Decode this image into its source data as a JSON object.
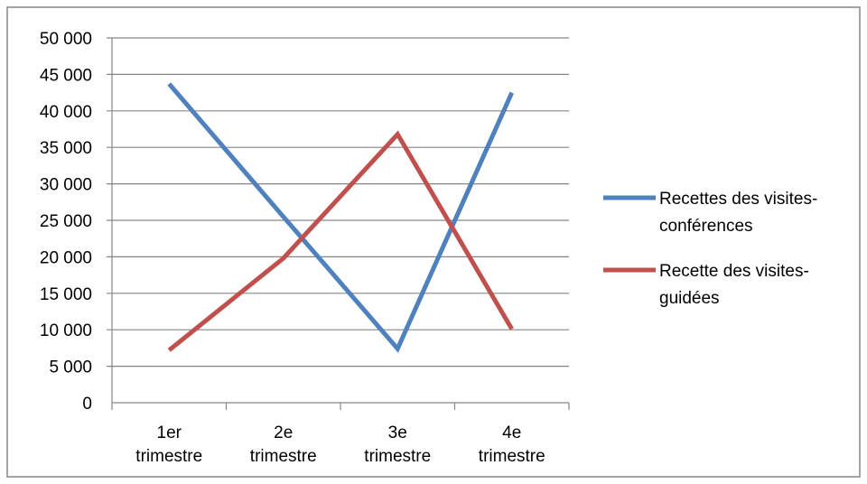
{
  "chart_data": {
    "type": "line",
    "categories": [
      [
        "1er",
        "trimestre"
      ],
      [
        "2e",
        "trimestre"
      ],
      [
        "3e",
        "trimestre"
      ],
      [
        "4e",
        "trimestre"
      ]
    ],
    "ylim": [
      0,
      50000
    ],
    "yticks": [
      0,
      5000,
      10000,
      15000,
      20000,
      25000,
      30000,
      35000,
      40000,
      45000,
      50000
    ],
    "ytick_labels": [
      "0",
      "5 000",
      "10 000",
      "15 000",
      "20 000",
      "25 000",
      "30 000",
      "35 000",
      "40 000",
      "45 000",
      "50 000"
    ],
    "grid": true,
    "legend_position": "right",
    "series": [
      {
        "name": [
          "Recettes des visites-",
          "conférences"
        ],
        "color": "#4F81BD",
        "values": [
          43700,
          25500,
          7400,
          42500
        ]
      },
      {
        "name": [
          "Recette des visites-",
          "guidées"
        ],
        "color": "#C0504D",
        "values": [
          7200,
          19800,
          36800,
          10100
        ]
      }
    ]
  }
}
